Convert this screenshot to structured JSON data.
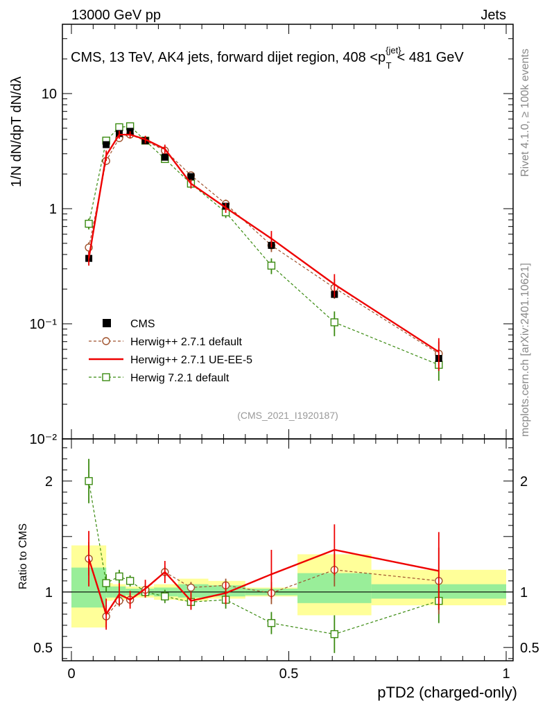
{
  "header": {
    "left": "13000 GeV pp",
    "right": "Jets"
  },
  "plot_title": "CMS, 13 TeV, AK4 jets, forward dijet region, 408 <p",
  "plot_title_sup": "{jet}",
  "plot_title_sub": "T",
  "plot_title_tail": "< 481 GeV",
  "side_text_top": "Rivet 4.1.0, ≥ 100k events",
  "side_text_bottom": "mcplots.cern.ch [arXiv:2401.10621]",
  "analysis_id": "(CMS_2021_I1920187)",
  "ylabel_main": "1/N dN/dpT dN/dλ",
  "ylabel_ratio": "Ratio to CMS",
  "xlabel": "pTD2 (charged-only)",
  "legend": [
    {
      "name": "CMS",
      "color": "#000000"
    },
    {
      "name": "Herwig++ 2.7.1 default",
      "color": "#a0522d"
    },
    {
      "name": "Herwig++ 2.7.1 UE-EE-5",
      "color": "#ee0000"
    },
    {
      "name": "Herwig 7.2.1 default",
      "color": "#3a8a10"
    }
  ],
  "chart_data": {
    "type": "line",
    "x_ticks": [
      "0",
      "0.5",
      "1"
    ],
    "xlim": [
      0,
      1
    ],
    "main": {
      "ylim_log": [
        0.01,
        40
      ],
      "y_ticks": [
        "10",
        "1",
        "10⁻¹",
        "10⁻²"
      ],
      "x": [
        0.04,
        0.08,
        0.11,
        0.135,
        0.17,
        0.215,
        0.275,
        0.355,
        0.46,
        0.605,
        0.845
      ],
      "series": [
        {
          "name": "CMS",
          "values": [
            0.37,
            3.6,
            4.5,
            4.7,
            3.9,
            2.8,
            1.9,
            1.05,
            0.48,
            0.18,
            0.05
          ]
        },
        {
          "name": "Herwig++ 2.7.1 default",
          "values": [
            0.46,
            2.6,
            4.1,
            4.4,
            3.9,
            3.2,
            1.95,
            1.1,
            0.48,
            0.205,
            0.055
          ]
        },
        {
          "name": "Herwig++ 2.7.1 UE-EE-5",
          "values": [
            0.37,
            2.9,
            4.4,
            4.4,
            4.0,
            3.3,
            1.65,
            1.02,
            0.55,
            0.22,
            0.057
          ]
        },
        {
          "name": "Herwig 7.2.1 default",
          "values": [
            0.74,
            3.9,
            5.1,
            5.2,
            3.9,
            2.7,
            1.65,
            0.93,
            0.32,
            0.103,
            0.044
          ]
        }
      ],
      "errors": {
        "Herwig++ 2.7.1 default": [
          0.05,
          0.2,
          0.2,
          0.2,
          0.2,
          0.2,
          0.15,
          0.1,
          0.06,
          0.04,
          0.015
        ],
        "Herwig++ 2.7.1 UE-EE-5": [
          0.05,
          0.3,
          0.35,
          0.3,
          0.3,
          0.3,
          0.15,
          0.1,
          0.09,
          0.05,
          0.018
        ],
        "Herwig 7.2.1 default": [
          0.08,
          0.3,
          0.3,
          0.3,
          0.2,
          0.2,
          0.15,
          0.1,
          0.05,
          0.025,
          0.012
        ]
      }
    },
    "ratio": {
      "ylim": [
        0.38,
        2.38
      ],
      "y_ticks": [
        "2",
        "1",
        "0.5"
      ],
      "band_edges": [
        0,
        0.08,
        0.095,
        0.125,
        0.155,
        0.19,
        0.245,
        0.315,
        0.4,
        0.52,
        0.69,
        1.0
      ],
      "band_inner": [
        [
          0.86,
          1.22
        ],
        [
          0.95,
          1.05
        ],
        [
          0.95,
          1.05
        ],
        [
          0.97,
          1.03
        ],
        [
          0.97,
          1.03
        ],
        [
          0.96,
          1.04
        ],
        [
          0.95,
          1.07
        ],
        [
          0.96,
          1.06
        ],
        [
          0.97,
          1.03
        ],
        [
          0.9,
          1.17
        ],
        [
          0.94,
          1.07
        ]
      ],
      "band_outer": [
        [
          0.68,
          1.42
        ],
        [
          0.92,
          1.08
        ],
        [
          0.93,
          1.07
        ],
        [
          0.95,
          1.05
        ],
        [
          0.95,
          1.05
        ],
        [
          0.93,
          1.07
        ],
        [
          0.92,
          1.12
        ],
        [
          0.94,
          1.1
        ],
        [
          0.96,
          1.04
        ],
        [
          0.79,
          1.34
        ],
        [
          0.88,
          1.2
        ]
      ],
      "x": [
        0.04,
        0.08,
        0.11,
        0.135,
        0.17,
        0.215,
        0.275,
        0.355,
        0.46,
        0.605,
        0.845
      ],
      "series": [
        {
          "name": "Herwig++ 2.7.1 default",
          "values": [
            1.3,
            0.78,
            0.92,
            0.93,
            1.02,
            1.18,
            1.04,
            1.06,
            0.99,
            1.2,
            1.1
          ]
        },
        {
          "name": "Herwig++ 2.7.1 UE-EE-5",
          "values": [
            1.3,
            0.8,
            0.98,
            0.93,
            1.03,
            1.18,
            0.92,
            0.99,
            1.16,
            1.38,
            1.19
          ]
        },
        {
          "name": "Herwig 7.2.1 default",
          "values": [
            2.0,
            1.08,
            1.14,
            1.1,
            1.0,
            0.96,
            0.91,
            0.93,
            0.72,
            0.62,
            0.92
          ]
        }
      ],
      "errors": {
        "Herwig++ 2.7.1 default": [
          0.15,
          0.1,
          0.05,
          0.05,
          0.05,
          0.05,
          0.05,
          0.06,
          0.1,
          0.15,
          0.3
        ],
        "Herwig++ 2.7.1 UE-EE-5": [
          0.25,
          0.14,
          0.1,
          0.08,
          0.08,
          0.1,
          0.08,
          0.1,
          0.22,
          0.23,
          0.35
        ],
        "Herwig 7.2.1 default": [
          0.2,
          0.08,
          0.06,
          0.05,
          0.05,
          0.06,
          0.07,
          0.08,
          0.1,
          0.17,
          0.2
        ]
      }
    }
  }
}
